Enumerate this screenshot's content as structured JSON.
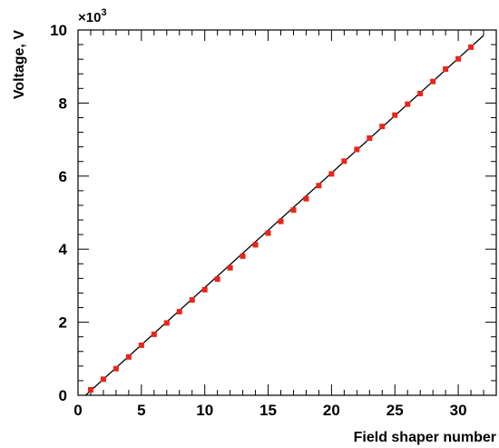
{
  "chart_data": {
    "type": "scatter",
    "title": "",
    "xlabel": "Field shaper number",
    "ylabel": "Voltage, V",
    "y_multiplier_label": "×10",
    "y_multiplier_exponent": "3",
    "xlim": [
      0,
      33
    ],
    "ylim": [
      0,
      10000
    ],
    "x_ticks": [
      0,
      5,
      10,
      15,
      20,
      25,
      30
    ],
    "x_tick_labels": [
      "0",
      "5",
      "10",
      "15",
      "20",
      "25",
      "30"
    ],
    "y_ticks": [
      0,
      2000,
      4000,
      6000,
      8000,
      10000
    ],
    "y_tick_labels": [
      "0",
      "2",
      "4",
      "6",
      "8",
      "10"
    ],
    "grid": false,
    "series": [
      {
        "marker_color": "#e8261a",
        "x": [
          1,
          2,
          3,
          4,
          5,
          6,
          7,
          8,
          9,
          10,
          11,
          12,
          13,
          14,
          15,
          16,
          17,
          18,
          19,
          20,
          21,
          22,
          23,
          24,
          25,
          26,
          27,
          28,
          29,
          30,
          31
        ],
        "y": [
          150,
          440,
          730,
          1050,
          1370,
          1670,
          1980,
          2290,
          2610,
          2890,
          3180,
          3490,
          3810,
          4120,
          4440,
          4760,
          5070,
          5380,
          5740,
          6060,
          6410,
          6730,
          7040,
          7360,
          7670,
          7970,
          8260,
          8590,
          8930,
          9210,
          9530
        ]
      }
    ],
    "fit_line": {
      "color": "#000000",
      "x": [
        0.6,
        32
      ],
      "y": [
        0,
        9850
      ]
    }
  }
}
